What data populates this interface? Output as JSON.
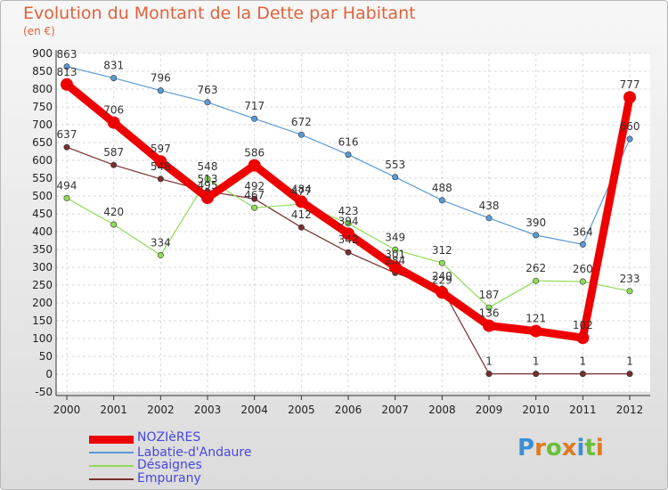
{
  "title": "Evolution du Montant de la Dette par Habitant",
  "unit": "(en €)",
  "logo": "Proxiti",
  "chart_data": {
    "type": "line",
    "title": "Evolution du Montant de la Dette par Habitant",
    "subtitle": "(en €)",
    "x": [
      "2000",
      "2001",
      "2002",
      "2003",
      "2004",
      "2005",
      "2006",
      "2007",
      "2008",
      "2009",
      "2010",
      "2011",
      "2012"
    ],
    "yticks": [
      "-50",
      "0",
      "50",
      "100",
      "150",
      "200",
      "250",
      "300",
      "350",
      "400",
      "450",
      "500",
      "550",
      "600",
      "650",
      "700",
      "750",
      "800",
      "850",
      "900"
    ],
    "ylim": [
      -50,
      900
    ],
    "grid": true,
    "legend_position": "bottom-left",
    "series": [
      {
        "name": "NOZIèRES",
        "color": "#ee0000",
        "values": [
          813,
          706,
          597,
          495,
          586,
          484,
          394,
          301,
          229,
          136,
          121,
          102,
          777
        ],
        "labels": [
          "813",
          "706",
          "597",
          "495",
          "586",
          "484",
          "394",
          "301",
          "229",
          "136",
          "121",
          "102",
          "777"
        ]
      },
      {
        "name": "Labatie-d'Andaure",
        "color": "#5a9ad6",
        "values": [
          863,
          831,
          796,
          763,
          717,
          672,
          616,
          553,
          488,
          438,
          390,
          364,
          660
        ],
        "labels": [
          "863",
          "831",
          "796",
          "763",
          "717",
          "672",
          "616",
          "553",
          "488",
          "438",
          "390",
          "364",
          "660"
        ]
      },
      {
        "name": "Désaignes",
        "color": "#8fdc5a",
        "values": [
          494,
          420,
          334,
          548,
          467,
          477,
          423,
          349,
          312,
          187,
          262,
          260,
          233
        ],
        "labels": [
          "494",
          "420",
          "334",
          "548",
          "467",
          "477",
          "423",
          "349",
          "312",
          "187",
          "262",
          "260",
          "233"
        ]
      },
      {
        "name": "Empurany",
        "color": "#7a2e2e",
        "values": [
          637,
          587,
          548,
          513,
          492,
          412,
          342,
          284,
          240,
          1,
          1,
          1,
          1
        ],
        "labels": [
          "637",
          "587",
          "548",
          "513",
          "492",
          "412",
          "342",
          "284",
          "240",
          "1",
          "1",
          "1",
          "1"
        ]
      }
    ]
  }
}
